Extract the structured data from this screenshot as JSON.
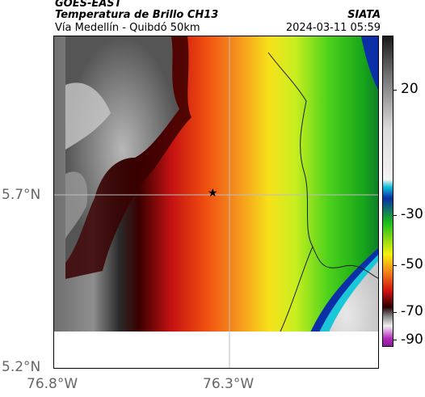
{
  "header": {
    "line1": "GOES-EAST",
    "product": "Temperatura de Brillo CH13",
    "agency": "SIATA",
    "region": "Vía Medellín - Quibdó 50km",
    "datetime": "2024-03-11 05:59"
  },
  "axes": {
    "lat_labels": [
      "5.7°N",
      "5.2°N"
    ],
    "lon_labels": [
      "76.8°W",
      "76.3°W"
    ]
  },
  "marker": {
    "icon": "star-icon"
  },
  "colorbar": {
    "labels": [
      "20",
      "-30",
      "-50",
      "-70",
      "-90"
    ],
    "range_max": 30,
    "range_min": -95,
    "colors": {
      "warm_gray": "#2b2b2b",
      "light_gray": "#e6e6e6",
      "cyan": "#19c7d8",
      "blue": "#0b2fa6",
      "green": "#19c01a",
      "yellow": "#f7f10c",
      "orange": "#f37c1a",
      "red": "#c91010",
      "dark_red": "#3a0000",
      "magenta": "#b22bb8"
    }
  }
}
